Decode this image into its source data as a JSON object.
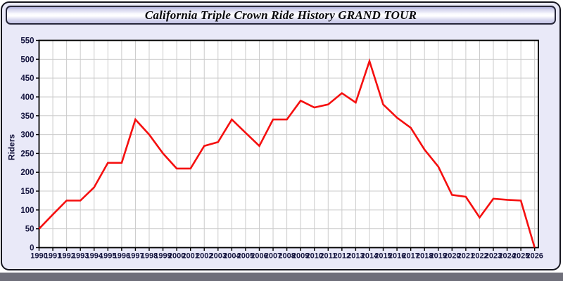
{
  "window": {
    "title": "California Triple Crown Ride History GRAND TOUR"
  },
  "chart_data": {
    "type": "line",
    "title": "California Triple Crown Ride History GRAND TOUR",
    "xlabel": "",
    "ylabel": "Riders",
    "ylim": [
      0,
      550
    ],
    "ytick_interval": 50,
    "grid": true,
    "legend": "none",
    "x": [
      1990,
      1991,
      1992,
      1993,
      1994,
      1995,
      1996,
      1997,
      1998,
      1999,
      2000,
      2001,
      2002,
      2003,
      2004,
      2005,
      2006,
      2007,
      2008,
      2009,
      2010,
      2011,
      2012,
      2013,
      2014,
      2015,
      2016,
      2017,
      2018,
      2019,
      2020,
      2021,
      2022,
      2023,
      2024,
      2025,
      2026
    ],
    "series": [
      {
        "name": "Riders",
        "color": "#f50f0f",
        "values": [
          50,
          88,
          125,
          125,
          160,
          225,
          225,
          340,
          300,
          250,
          210,
          210,
          270,
          280,
          340,
          305,
          270,
          340,
          340,
          390,
          372,
          380,
          410,
          385,
          495,
          380,
          345,
          318,
          260,
          215,
          140,
          135,
          80,
          130,
          127,
          125,
          0
        ]
      }
    ]
  },
  "colors": {
    "frame_background": "#e9e9f8",
    "plot_background": "#ffffff",
    "grid_line": "#cbcbcb",
    "axis_line": "#000000",
    "tick_text": "#15153f",
    "line_series": "#f50f0f",
    "bottom_band": "#6f6f7a"
  }
}
